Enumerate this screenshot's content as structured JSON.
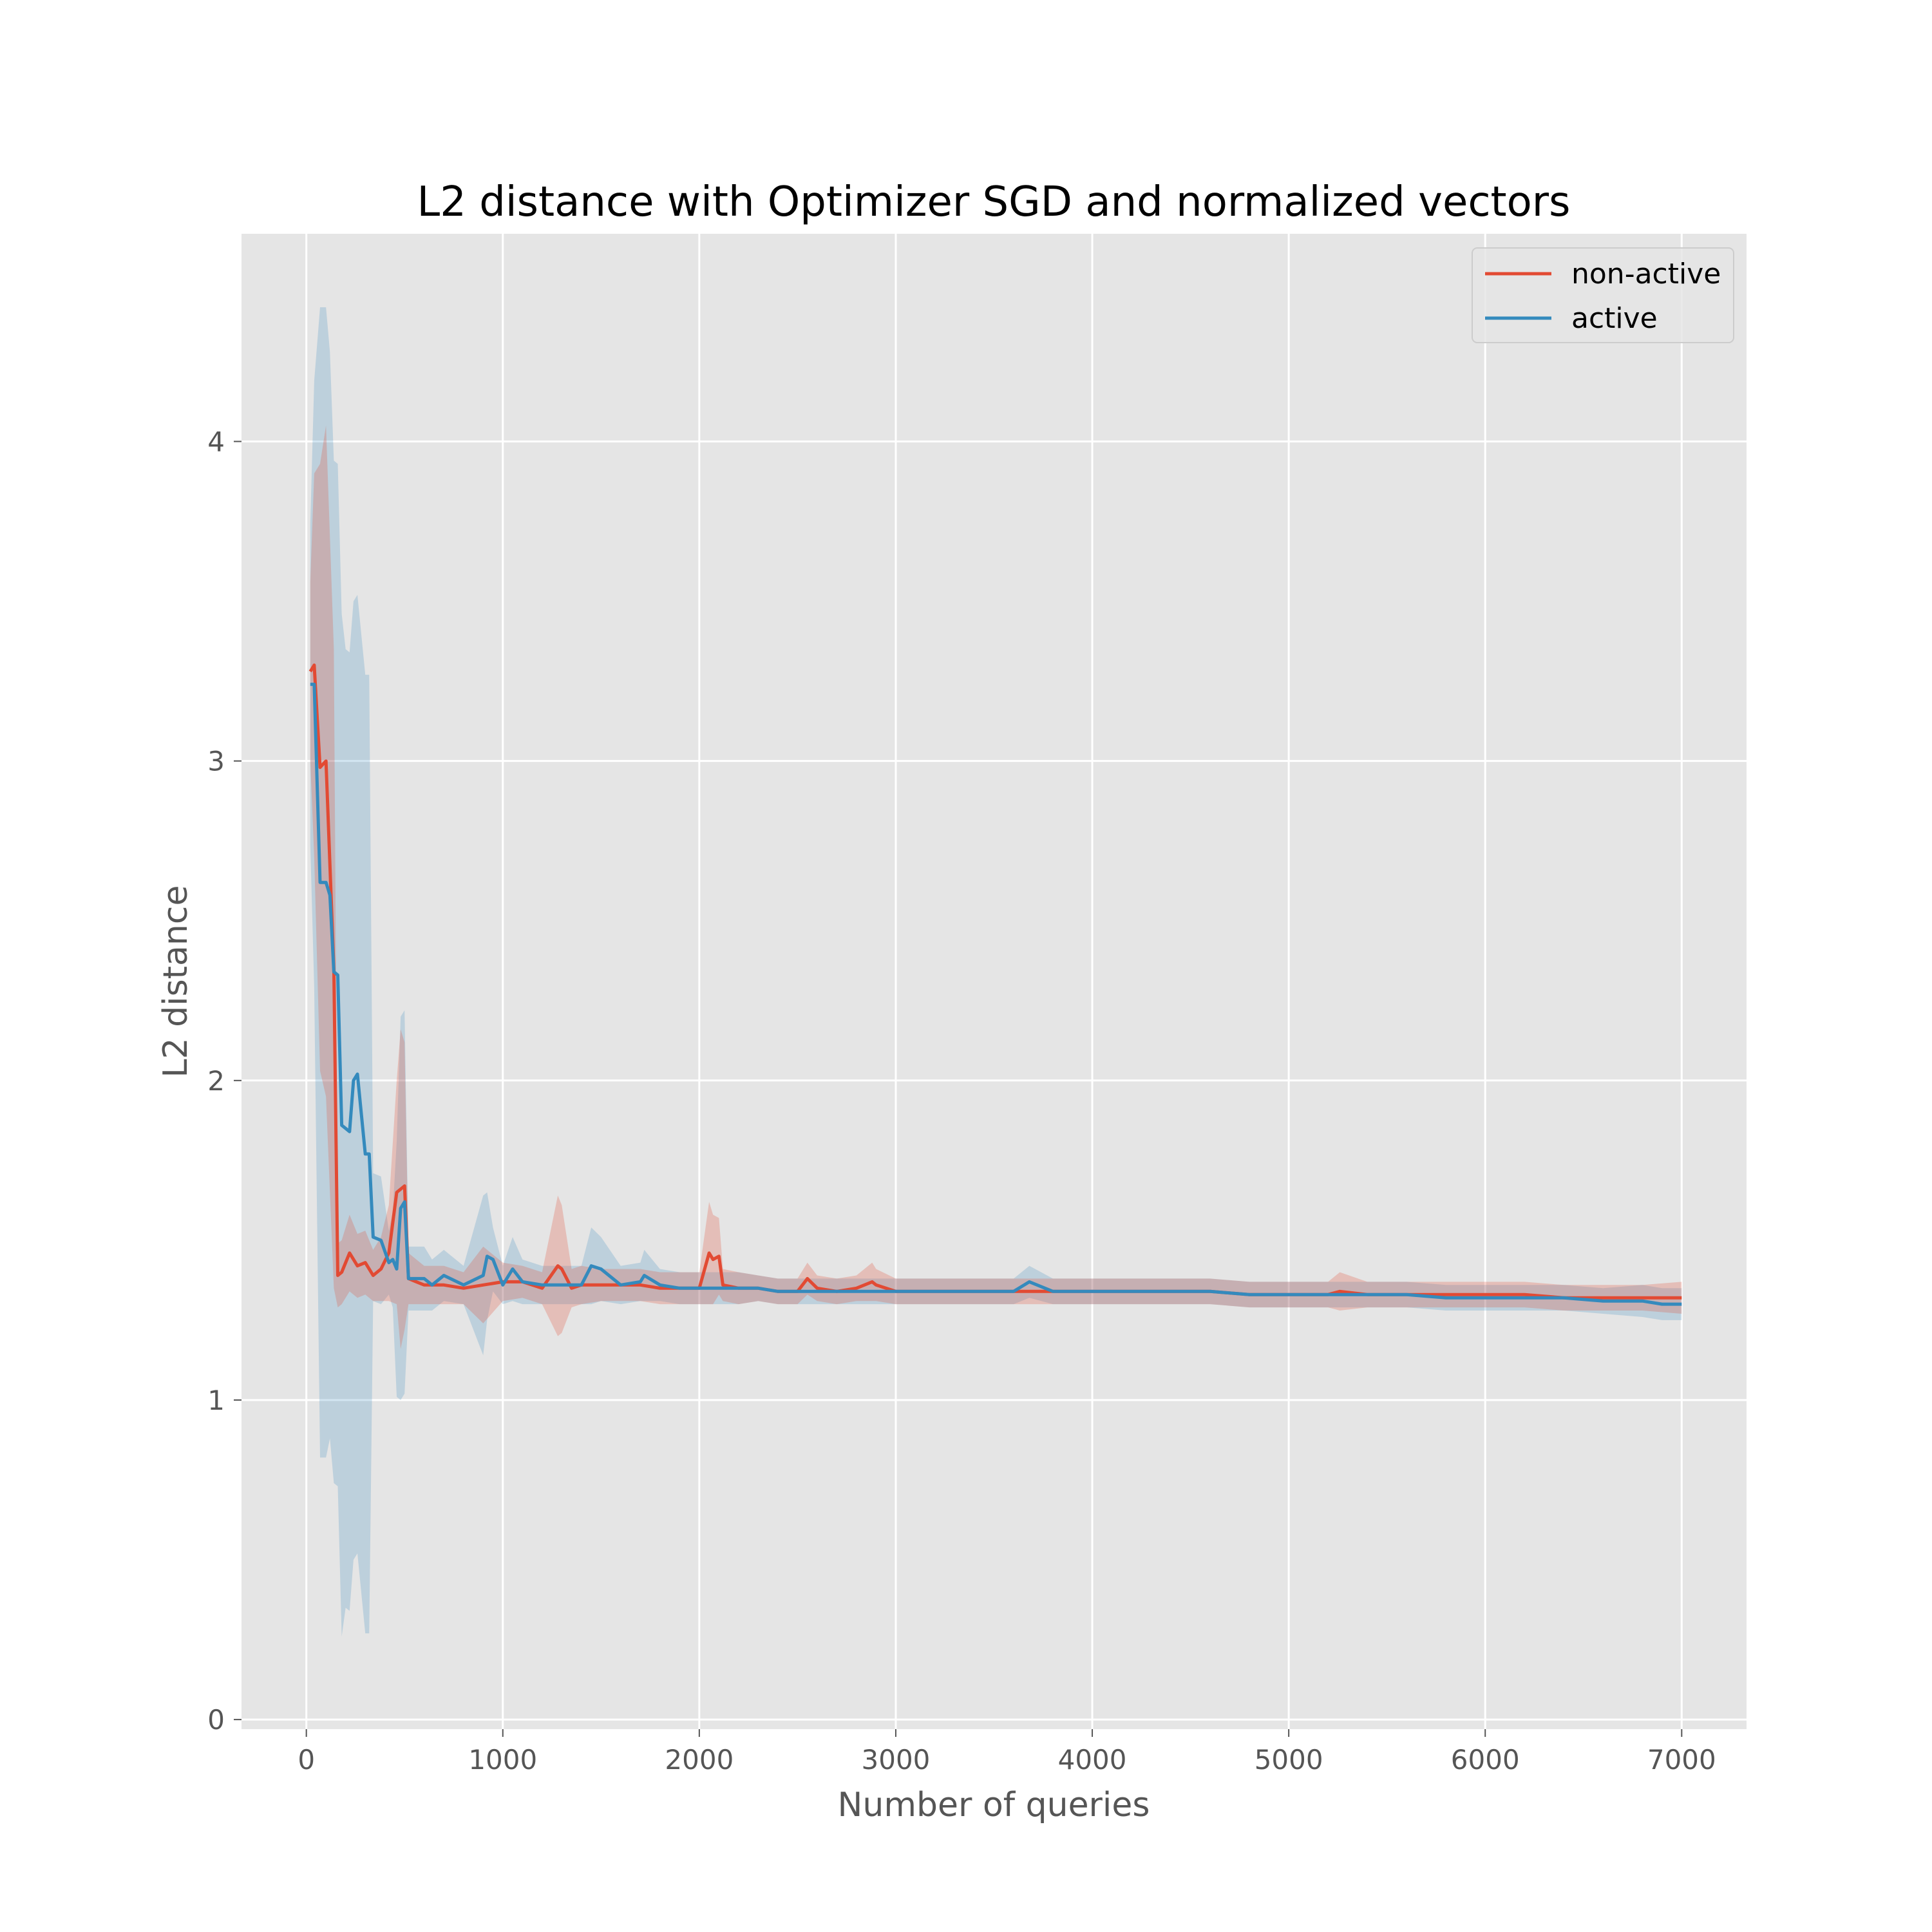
{
  "chart_data": {
    "type": "line",
    "title": "L2 distance with Optimizer SGD and normalized vectors",
    "xlabel": "Number of queries",
    "ylabel": "L2 distance",
    "xlim": [
      -330,
      7330
    ],
    "ylim": [
      -0.03,
      4.65
    ],
    "xticks": [
      0,
      1000,
      2000,
      3000,
      4000,
      5000,
      6000,
      7000
    ],
    "xtick_labels": [
      "0",
      "1000",
      "2000",
      "3000",
      "4000",
      "5000",
      "6000",
      "7000"
    ],
    "yticks": [
      0,
      1,
      2,
      3,
      4
    ],
    "ytick_labels": [
      "0",
      "1",
      "2",
      "3",
      "4"
    ],
    "grid": true,
    "legend_position": "top-right",
    "series": [
      {
        "name": "non-active",
        "color": "#E24A33",
        "x": [
          20,
          40,
          70,
          100,
          140,
          160,
          180,
          220,
          260,
          300,
          340,
          380,
          420,
          460,
          480,
          500,
          520,
          560,
          600,
          700,
          800,
          900,
          1000,
          1100,
          1200,
          1280,
          1300,
          1350,
          1400,
          1500,
          1600,
          1700,
          1800,
          1900,
          2000,
          2050,
          2070,
          2100,
          2120,
          2200,
          2300,
          2400,
          2500,
          2550,
          2600,
          2700,
          2800,
          2880,
          2900,
          3000,
          3200,
          3400,
          3600,
          3800,
          4000,
          4200,
          4400,
          4600,
          4800,
          5000,
          5200,
          5260,
          5400,
          5600,
          5800,
          6000,
          6200,
          6400,
          6600,
          6800,
          7000
        ],
        "y": [
          3.28,
          3.3,
          2.98,
          3.0,
          2.35,
          1.39,
          1.4,
          1.46,
          1.42,
          1.43,
          1.39,
          1.41,
          1.46,
          1.65,
          1.66,
          1.67,
          1.38,
          1.37,
          1.36,
          1.36,
          1.35,
          1.36,
          1.37,
          1.37,
          1.35,
          1.42,
          1.41,
          1.35,
          1.36,
          1.36,
          1.36,
          1.36,
          1.35,
          1.35,
          1.35,
          1.46,
          1.44,
          1.45,
          1.36,
          1.35,
          1.35,
          1.34,
          1.34,
          1.38,
          1.35,
          1.34,
          1.35,
          1.37,
          1.36,
          1.34,
          1.34,
          1.34,
          1.34,
          1.34,
          1.34,
          1.34,
          1.34,
          1.34,
          1.33,
          1.33,
          1.33,
          1.34,
          1.33,
          1.33,
          1.33,
          1.33,
          1.33,
          1.32,
          1.32,
          1.32,
          1.32
        ],
        "band_halfwidth": [
          0.28,
          0.6,
          0.95,
          1.05,
          1.0,
          0.1,
          0.1,
          0.12,
          0.1,
          0.1,
          0.08,
          0.1,
          0.15,
          0.35,
          0.5,
          0.45,
          0.08,
          0.07,
          0.06,
          0.06,
          0.05,
          0.12,
          0.06,
          0.05,
          0.05,
          0.22,
          0.2,
          0.06,
          0.06,
          0.05,
          0.05,
          0.05,
          0.05,
          0.05,
          0.05,
          0.16,
          0.14,
          0.12,
          0.05,
          0.05,
          0.04,
          0.04,
          0.04,
          0.05,
          0.04,
          0.04,
          0.04,
          0.06,
          0.05,
          0.04,
          0.04,
          0.04,
          0.04,
          0.04,
          0.04,
          0.04,
          0.04,
          0.04,
          0.04,
          0.04,
          0.04,
          0.06,
          0.04,
          0.04,
          0.04,
          0.04,
          0.04,
          0.04,
          0.04,
          0.04,
          0.05
        ]
      },
      {
        "name": "active",
        "color": "#348ABD",
        "x": [
          20,
          40,
          70,
          100,
          120,
          140,
          160,
          180,
          200,
          220,
          240,
          260,
          300,
          320,
          340,
          380,
          420,
          440,
          460,
          480,
          500,
          520,
          560,
          600,
          640,
          700,
          800,
          900,
          920,
          950,
          1000,
          1050,
          1100,
          1200,
          1300,
          1400,
          1450,
          1500,
          1600,
          1700,
          1720,
          1800,
          1900,
          2000,
          2100,
          2200,
          2300,
          2400,
          2500,
          2600,
          2700,
          2800,
          2900,
          3000,
          3200,
          3400,
          3600,
          3680,
          3800,
          4000,
          4200,
          4400,
          4600,
          4800,
          5000,
          5200,
          5400,
          5600,
          5800,
          6000,
          6200,
          6400,
          6600,
          6800,
          6900,
          7000
        ],
        "y": [
          3.24,
          3.24,
          2.62,
          2.62,
          2.58,
          2.34,
          2.33,
          1.86,
          1.85,
          1.84,
          2.0,
          2.02,
          1.77,
          1.77,
          1.51,
          1.5,
          1.43,
          1.44,
          1.41,
          1.6,
          1.62,
          1.38,
          1.38,
          1.38,
          1.36,
          1.39,
          1.36,
          1.39,
          1.45,
          1.44,
          1.36,
          1.41,
          1.37,
          1.36,
          1.36,
          1.36,
          1.42,
          1.41,
          1.36,
          1.37,
          1.39,
          1.36,
          1.35,
          1.35,
          1.35,
          1.35,
          1.35,
          1.34,
          1.34,
          1.34,
          1.34,
          1.34,
          1.34,
          1.34,
          1.34,
          1.34,
          1.34,
          1.37,
          1.34,
          1.34,
          1.34,
          1.34,
          1.34,
          1.33,
          1.33,
          1.33,
          1.33,
          1.33,
          1.32,
          1.32,
          1.32,
          1.32,
          1.31,
          1.31,
          1.3,
          1.3
        ],
        "band_halfwidth": [
          0.5,
          0.95,
          1.8,
          1.8,
          1.7,
          1.6,
          1.6,
          1.6,
          1.5,
          1.5,
          1.5,
          1.5,
          1.5,
          1.5,
          0.2,
          0.2,
          0.1,
          0.15,
          0.4,
          0.6,
          0.6,
          0.1,
          0.1,
          0.1,
          0.08,
          0.08,
          0.06,
          0.25,
          0.2,
          0.1,
          0.06,
          0.1,
          0.07,
          0.06,
          0.06,
          0.06,
          0.12,
          0.1,
          0.06,
          0.06,
          0.08,
          0.05,
          0.05,
          0.05,
          0.05,
          0.05,
          0.04,
          0.04,
          0.04,
          0.04,
          0.04,
          0.04,
          0.04,
          0.04,
          0.04,
          0.04,
          0.04,
          0.05,
          0.04,
          0.04,
          0.04,
          0.04,
          0.04,
          0.04,
          0.04,
          0.04,
          0.04,
          0.04,
          0.04,
          0.04,
          0.04,
          0.04,
          0.04,
          0.05,
          0.05,
          0.05
        ]
      }
    ]
  }
}
